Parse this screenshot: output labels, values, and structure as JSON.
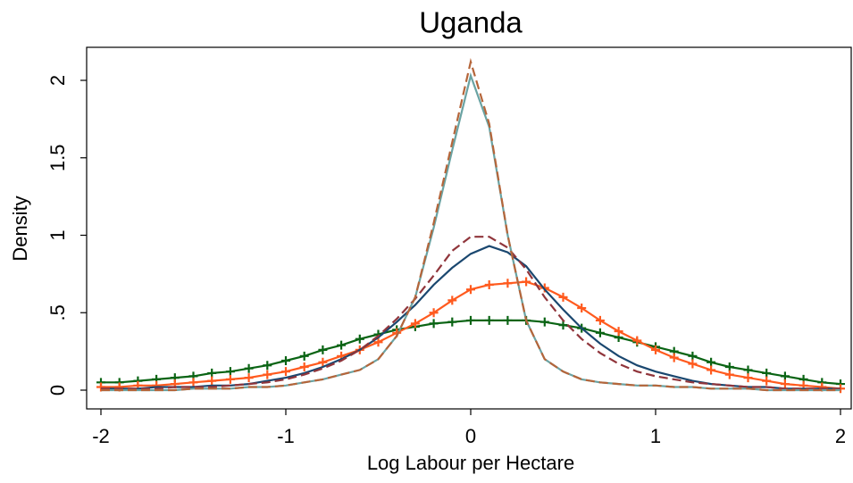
{
  "chart_data": {
    "type": "line",
    "title": "Uganda",
    "xlabel": "Log Labour per Hectare",
    "ylabel": "Density",
    "x": [
      -2,
      -1.9,
      -1.8,
      -1.7,
      -1.6,
      -1.5,
      -1.4,
      -1.3,
      -1.2,
      -1.1,
      -1,
      -0.9,
      -0.8,
      -0.7,
      -0.6,
      -0.5,
      -0.4,
      -0.3,
      -0.2,
      -0.1,
      0,
      0.1,
      0.2,
      0.3,
      0.4,
      0.5,
      0.6,
      0.7,
      0.8,
      0.9,
      1,
      1.1,
      1.2,
      1.3,
      1.4,
      1.5,
      1.6,
      1.7,
      1.8,
      1.9,
      2
    ],
    "series": [
      {
        "color": "#0a6414",
        "marker": "+",
        "dash": false,
        "values": [
          0.05,
          0.05,
          0.06,
          0.07,
          0.08,
          0.09,
          0.11,
          0.12,
          0.14,
          0.16,
          0.19,
          0.22,
          0.26,
          0.29,
          0.33,
          0.36,
          0.39,
          0.41,
          0.43,
          0.44,
          0.45,
          0.45,
          0.45,
          0.45,
          0.44,
          0.42,
          0.4,
          0.37,
          0.34,
          0.31,
          0.28,
          0.25,
          0.22,
          0.18,
          0.15,
          0.13,
          0.11,
          0.09,
          0.07,
          0.05,
          0.04
        ]
      },
      {
        "color": "#ff5a1e",
        "marker": "+",
        "dash": false,
        "values": [
          0.02,
          0.02,
          0.03,
          0.03,
          0.04,
          0.05,
          0.06,
          0.07,
          0.08,
          0.1,
          0.12,
          0.15,
          0.18,
          0.22,
          0.26,
          0.31,
          0.37,
          0.43,
          0.5,
          0.58,
          0.65,
          0.68,
          0.69,
          0.7,
          0.66,
          0.6,
          0.53,
          0.45,
          0.38,
          0.32,
          0.26,
          0.21,
          0.17,
          0.13,
          0.1,
          0.08,
          0.06,
          0.04,
          0.03,
          0.02,
          0.01
        ]
      },
      {
        "color": "#1a476f",
        "marker": null,
        "dash": false,
        "values": [
          0.01,
          0.01,
          0.01,
          0.02,
          0.02,
          0.02,
          0.03,
          0.03,
          0.04,
          0.06,
          0.08,
          0.11,
          0.15,
          0.2,
          0.26,
          0.34,
          0.44,
          0.55,
          0.68,
          0.79,
          0.88,
          0.93,
          0.89,
          0.8,
          0.65,
          0.52,
          0.4,
          0.3,
          0.22,
          0.16,
          0.12,
          0.09,
          0.06,
          0.04,
          0.03,
          0.02,
          0.02,
          0.01,
          0.01,
          0.01,
          0.01
        ]
      },
      {
        "color": "#90353b",
        "marker": null,
        "dash": true,
        "values": [
          0.01,
          0.01,
          0.01,
          0.01,
          0.02,
          0.02,
          0.02,
          0.03,
          0.04,
          0.05,
          0.07,
          0.1,
          0.14,
          0.19,
          0.26,
          0.35,
          0.46,
          0.59,
          0.74,
          0.9,
          0.99,
          0.99,
          0.92,
          0.78,
          0.6,
          0.45,
          0.33,
          0.24,
          0.17,
          0.12,
          0.09,
          0.07,
          0.05,
          0.04,
          0.03,
          0.02,
          0.02,
          0.01,
          0.01,
          0.01,
          0.01
        ]
      },
      {
        "color": "#6aa3a3",
        "marker": null,
        "dash": false,
        "values": [
          0,
          0,
          0,
          0,
          0,
          0.01,
          0.01,
          0.01,
          0.02,
          0.02,
          0.03,
          0.05,
          0.07,
          0.1,
          0.13,
          0.2,
          0.35,
          0.6,
          1.05,
          1.55,
          2.03,
          1.7,
          1.0,
          0.45,
          0.2,
          0.12,
          0.07,
          0.05,
          0.04,
          0.03,
          0.03,
          0.02,
          0.02,
          0.01,
          0.01,
          0.01,
          0,
          0,
          0,
          0,
          0
        ]
      },
      {
        "color": "#b5653a",
        "marker": null,
        "dash": true,
        "values": [
          0,
          0,
          0,
          0,
          0,
          0.01,
          0.01,
          0.01,
          0.02,
          0.02,
          0.03,
          0.05,
          0.07,
          0.1,
          0.13,
          0.2,
          0.35,
          0.6,
          1.08,
          1.6,
          2.12,
          1.72,
          1.0,
          0.45,
          0.2,
          0.12,
          0.07,
          0.05,
          0.04,
          0.03,
          0.03,
          0.02,
          0.02,
          0.01,
          0.01,
          0.01,
          0,
          0,
          0,
          0,
          0
        ]
      }
    ],
    "xlim": [
      -2,
      2
    ],
    "xticks": [
      -2,
      -1,
      0,
      1,
      2
    ],
    "ylim": [
      0,
      2
    ],
    "yticks": [
      0,
      {
        "value": 0.5,
        "label": ".5"
      },
      1,
      1.5,
      2
    ]
  }
}
